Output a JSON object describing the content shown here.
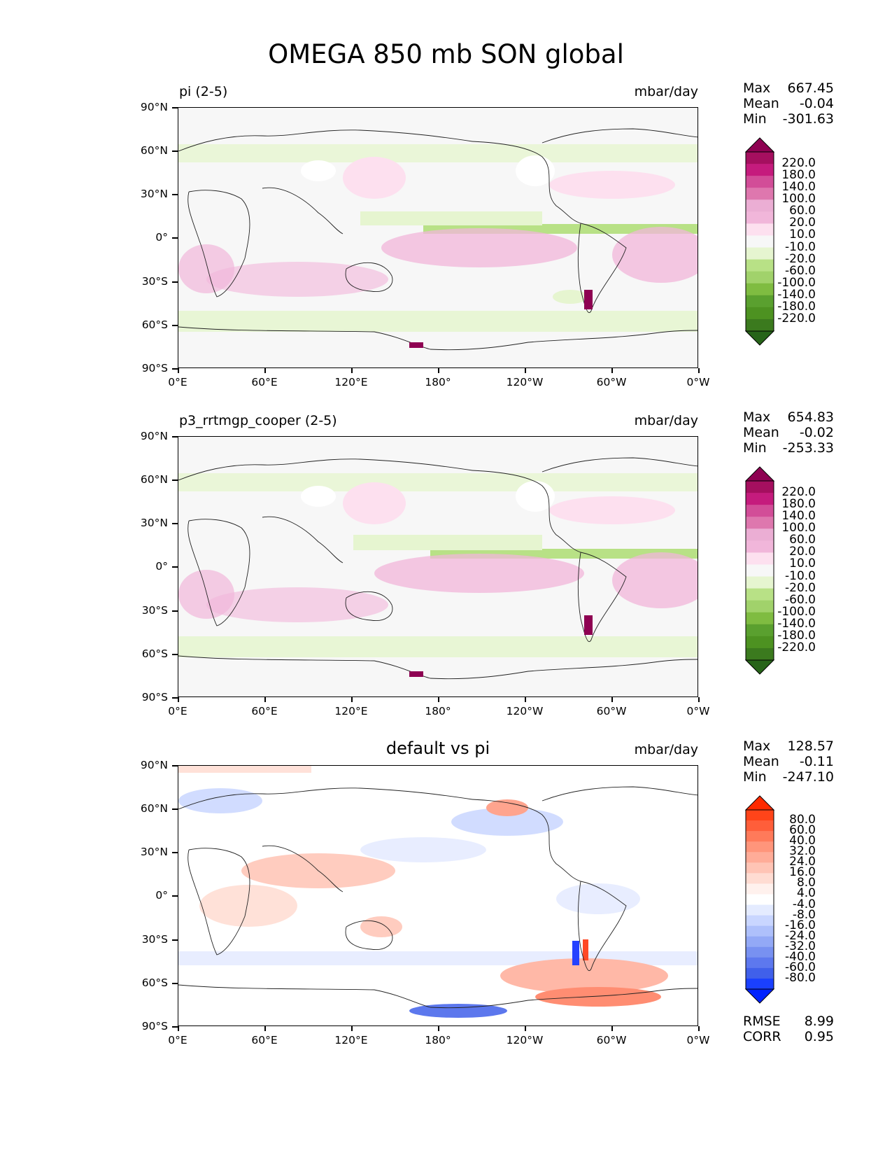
{
  "title": "OMEGA 850 mb SON global",
  "y_ticks": [
    "90°N",
    "60°N",
    "30°N",
    "0°",
    "30°S",
    "60°S",
    "90°S"
  ],
  "x_ticks": [
    "0°E",
    "60°E",
    "120°E",
    "180°",
    "120°W",
    "60°W",
    "0°W"
  ],
  "panels": [
    {
      "title": "pi (2-5)",
      "units": "mbar/day",
      "stats": {
        "max_label": "Max",
        "max": "667.45",
        "mean_label": "Mean",
        "mean": "-0.04",
        "min_label": "Min",
        "min": "-301.63"
      },
      "colorbar": {
        "labels": [
          "220.0",
          "180.0",
          "140.0",
          "100.0",
          "60.0",
          "20.0",
          "10.0",
          "-10.0",
          "-20.0",
          "-60.0",
          "-100.0",
          "-140.0",
          "-180.0",
          "-220.0"
        ],
        "colors": [
          "#8e0152",
          "#a50f5f",
          "#c51b7d",
          "#d24d98",
          "#de77ae",
          "#ebaed4",
          "#f1b6da",
          "#fde0ef",
          "#f7f7f7",
          "#e6f5d0",
          "#b8e186",
          "#a1d26b",
          "#7fbc41",
          "#5aa02f",
          "#4d9221",
          "#3b7a1e",
          "#276419"
        ]
      }
    },
    {
      "title": "p3_rrtmgp_cooper (2-5)",
      "units": "mbar/day",
      "stats": {
        "max_label": "Max",
        "max": "654.83",
        "mean_label": "Mean",
        "mean": "-0.02",
        "min_label": "Min",
        "min": "-253.33"
      },
      "colorbar": {
        "labels": [
          "220.0",
          "180.0",
          "140.0",
          "100.0",
          "60.0",
          "20.0",
          "10.0",
          "-10.0",
          "-20.0",
          "-60.0",
          "-100.0",
          "-140.0",
          "-180.0",
          "-220.0"
        ],
        "colors": [
          "#8e0152",
          "#a50f5f",
          "#c51b7d",
          "#d24d98",
          "#de77ae",
          "#ebaed4",
          "#f1b6da",
          "#fde0ef",
          "#f7f7f7",
          "#e6f5d0",
          "#b8e186",
          "#a1d26b",
          "#7fbc41",
          "#5aa02f",
          "#4d9221",
          "#3b7a1e",
          "#276419"
        ]
      }
    },
    {
      "title": "default vs pi",
      "units": "mbar/day",
      "stats": {
        "max_label": "Max",
        "max": "128.57",
        "mean_label": "Mean",
        "mean": "-0.11",
        "min_label": "Min",
        "min": "-247.10"
      },
      "colorbar": {
        "labels": [
          "80.0",
          "60.0",
          "40.0",
          "32.0",
          "24.0",
          "16.0",
          "8.0",
          "4.0",
          "-4.0",
          "-8.0",
          "-16.0",
          "-24.0",
          "-32.0",
          "-40.0",
          "-60.0",
          "-80.0"
        ],
        "colors": [
          "#ff2a00",
          "#ff4419",
          "#ff5e3a",
          "#ff7a5a",
          "#ff957b",
          "#ffac98",
          "#ffc4b5",
          "#ffdcd2",
          "#fff1ed",
          "#ffffff",
          "#e4ebff",
          "#c9d6ff",
          "#aec0fb",
          "#93a9f6",
          "#7891f1",
          "#5d78ee",
          "#4060ea",
          "#1a40ff",
          "#0022ff"
        ]
      },
      "metrics": {
        "rmse_label": "RMSE",
        "rmse": "8.99",
        "corr_label": "CORR",
        "corr": "0.95"
      }
    }
  ]
}
